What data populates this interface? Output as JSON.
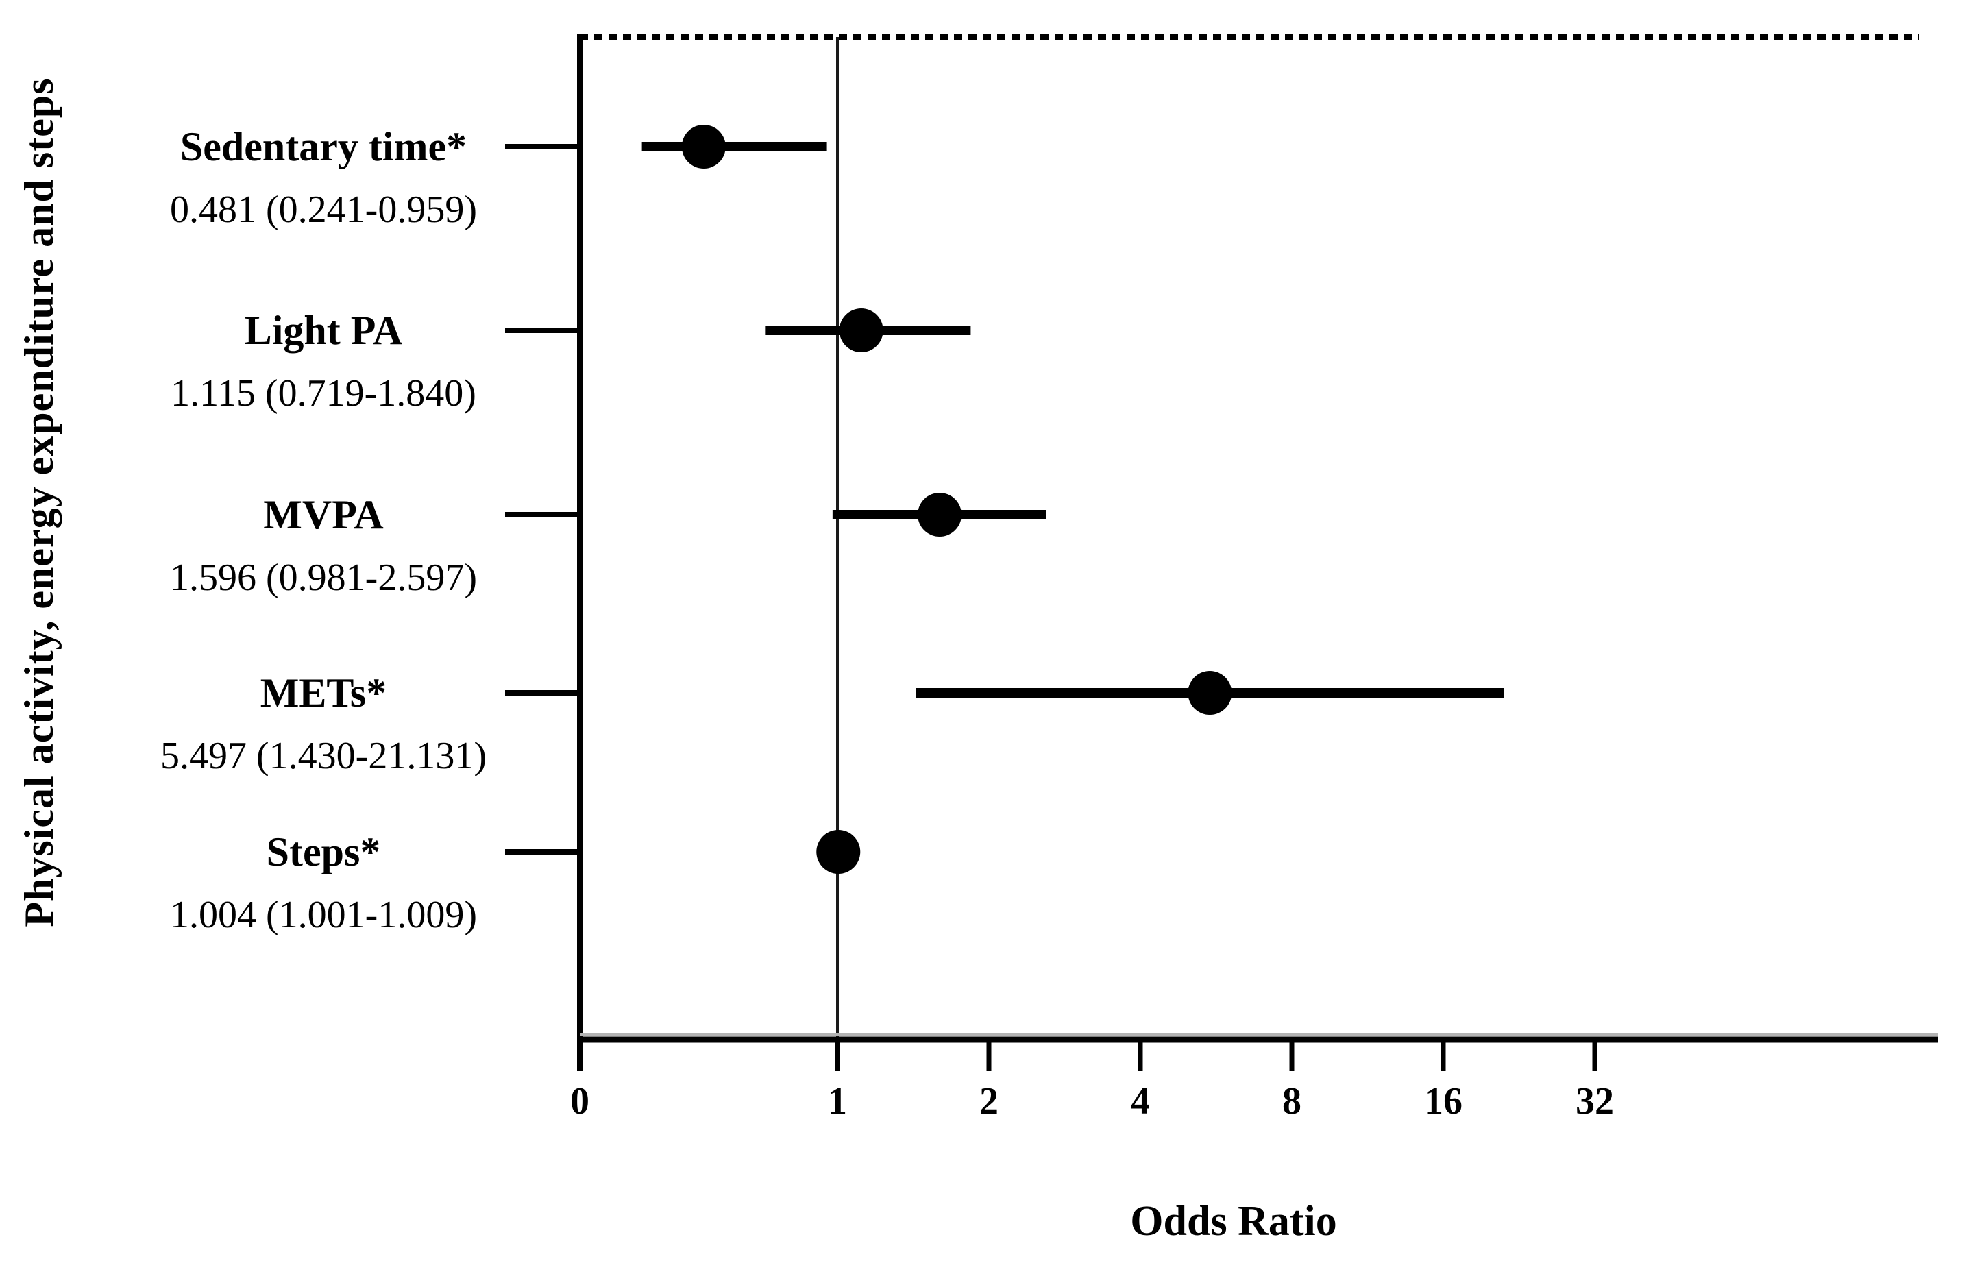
{
  "figure": {
    "y_axis_title": "Physical activity, energy expenditure and steps",
    "x_axis_title": "Odds Ratio",
    "background_color": "#ffffff",
    "ink_color": "#000000"
  },
  "rows": [
    {
      "label": "Sedentary time*",
      "value_text": "0.481 (0.241-0.959)",
      "odds_ratio": 0.481,
      "ci_lower": 0.241,
      "ci_upper": 0.959
    },
    {
      "label": "Light PA",
      "value_text": "1.115 (0.719-1.840)",
      "odds_ratio": 1.115,
      "ci_lower": 0.719,
      "ci_upper": 1.84
    },
    {
      "label": "MVPA",
      "value_text": "1.596 (0.981-2.597)",
      "odds_ratio": 1.596,
      "ci_lower": 0.981,
      "ci_upper": 2.597
    },
    {
      "label": "METs*",
      "value_text": "5.497 (1.430-21.131)",
      "odds_ratio": 5.497,
      "ci_lower": 1.43,
      "ci_upper": 21.131
    },
    {
      "label": "Steps*",
      "value_text": "1.004 (1.001-1.009)",
      "odds_ratio": 1.004,
      "ci_lower": 1.001,
      "ci_upper": 1.009
    }
  ],
  "x_axis": {
    "tick_labels": [
      "0",
      "1",
      "2",
      "4",
      "8",
      "16",
      "32"
    ]
  },
  "chart_data": {
    "type": "scatter",
    "subtype": "forest_plot",
    "title": "",
    "xlabel": "Odds Ratio",
    "ylabel": "Physical activity, energy expenditure and steps",
    "x_scale": "linear from 0 to 1, log2 for values greater than 1",
    "x_ticks": [
      0,
      1,
      2,
      4,
      8,
      16,
      32
    ],
    "xlim": [
      0,
      64
    ],
    "reference_line_x": 1,
    "grid": false,
    "legend": "none",
    "top_border_style": "dotted",
    "categories": [
      "Sedentary time*",
      "Light PA",
      "MVPA",
      "METs*",
      "Steps*"
    ],
    "series": [
      {
        "name": "Odds Ratio (95% CI)",
        "marker": "filled-circle",
        "color": "#000000",
        "points": [
          {
            "category": "Sedentary time*",
            "odds_ratio": 0.481,
            "ci_lower": 0.241,
            "ci_upper": 0.959
          },
          {
            "category": "Light PA",
            "odds_ratio": 1.115,
            "ci_lower": 0.719,
            "ci_upper": 1.84
          },
          {
            "category": "MVPA",
            "odds_ratio": 1.596,
            "ci_lower": 0.981,
            "ci_upper": 2.597
          },
          {
            "category": "METs*",
            "odds_ratio": 5.497,
            "ci_lower": 1.43,
            "ci_upper": 21.131
          },
          {
            "category": "Steps*",
            "odds_ratio": 1.004,
            "ci_lower": 1.001,
            "ci_upper": 1.009
          }
        ]
      }
    ]
  }
}
